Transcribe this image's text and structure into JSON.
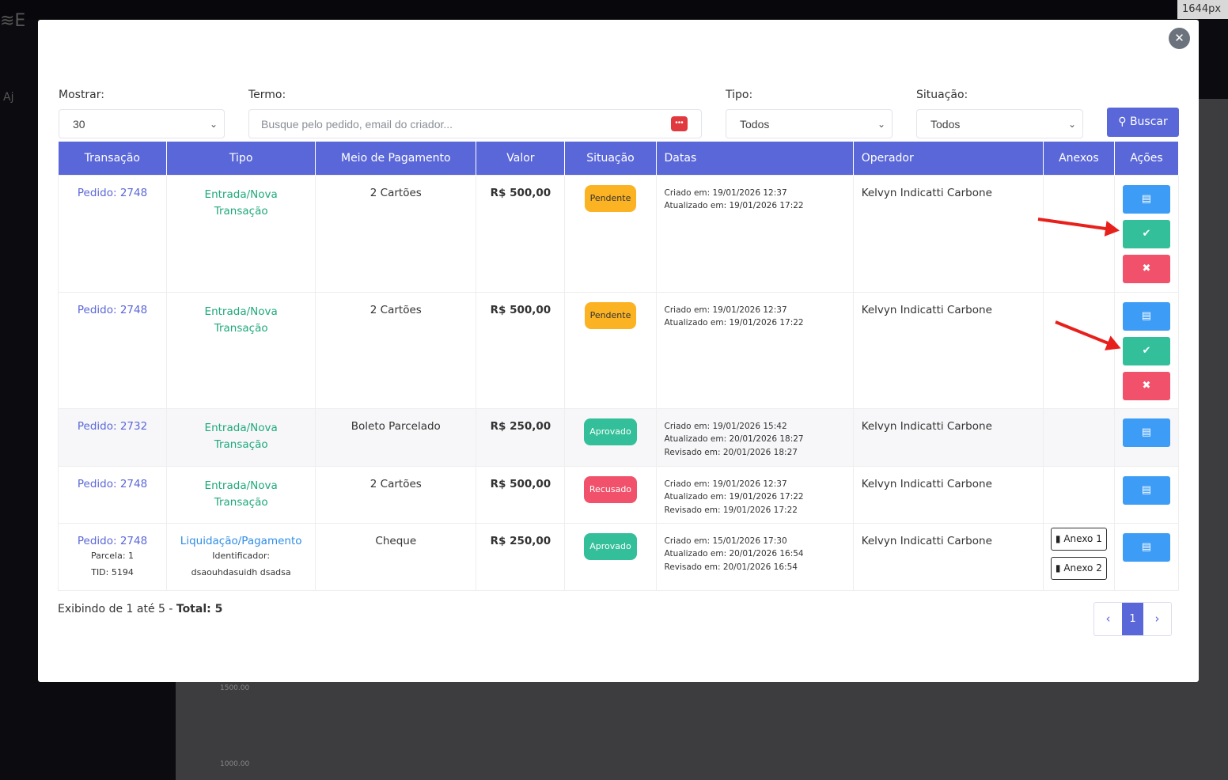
{
  "background": {
    "ruler": "1644px ×",
    "sidebar_help": "Aj",
    "chart_ticks": [
      "1500.00",
      "1000.00"
    ]
  },
  "filters": {
    "mostrar_label": "Mostrar:",
    "mostrar_value": "30",
    "termo_label": "Termo:",
    "termo_placeholder": "Busque pelo pedido, email do criador...",
    "tipo_label": "Tipo:",
    "tipo_value": "Todos",
    "situacao_label": "Situação:",
    "situacao_value": "Todos",
    "buscar": "Buscar"
  },
  "columns": [
    "Transação",
    "Tipo",
    "Meio de Pagamento",
    "Valor",
    "Situação",
    "Datas",
    "Operador",
    "Anexos",
    "Ações"
  ],
  "rows": [
    {
      "transacao": "Pedido: 2748",
      "tipo": "Entrada/Nova Transação",
      "meio": "2 Cartões",
      "valor": "R$ 500,00",
      "situacao": "Pendente",
      "datas": [
        "Criado em: 19/01/2026 12:37",
        "Atualizado em: 19/01/2026 17:22"
      ],
      "operador": "Kelvyn Indicatti Carbone"
    },
    {
      "transacao": "Pedido: 2748",
      "tipo": "Entrada/Nova Transação",
      "meio": "2 Cartões",
      "valor": "R$ 500,00",
      "situacao": "Pendente",
      "datas": [
        "Criado em: 19/01/2026 12:37",
        "Atualizado em: 19/01/2026 17:22"
      ],
      "operador": "Kelvyn Indicatti Carbone"
    },
    {
      "transacao": "Pedido: 2732",
      "tipo": "Entrada/Nova Transação",
      "meio": "Boleto Parcelado",
      "valor": "R$ 250,00",
      "situacao": "Aprovado",
      "datas": [
        "Criado em: 19/01/2026 15:42",
        "Atualizado em: 20/01/2026 18:27",
        "Revisado em: 20/01/2026 18:27"
      ],
      "operador": "Kelvyn Indicatti Carbone"
    },
    {
      "transacao": "Pedido: 2748",
      "tipo": "Entrada/Nova Transação",
      "meio": "2 Cartões",
      "valor": "R$ 500,00",
      "situacao": "Recusado",
      "datas": [
        "Criado em: 19/01/2026 12:37",
        "Atualizado em: 19/01/2026 17:22",
        "Revisado em: 19/01/2026 17:22"
      ],
      "operador": "Kelvyn Indicatti Carbone"
    },
    {
      "transacao": "Pedido: 2748",
      "parcela": "Parcela: 1",
      "tid": "TID: 5194",
      "tipo": "Liquidação/Pagamento",
      "identificador_label": "Identificador:",
      "identificador": "dsaouhdasuidh dsadsa",
      "meio": "Cheque",
      "valor": "R$ 250,00",
      "situacao": "Aprovado",
      "datas": [
        "Criado em: 15/01/2026 17:30",
        "Atualizado em: 20/01/2026 16:54",
        "Revisado em: 20/01/2026 16:54"
      ],
      "operador": "Kelvyn Indicatti Carbone",
      "anexos": [
        "Anexo 1",
        "Anexo 2"
      ]
    }
  ],
  "footer": {
    "text": "Exibindo de 1 até 5 - ",
    "total": "Total: 5"
  },
  "pagination": {
    "current": "1"
  },
  "colors": {
    "primary": "#5a67d8",
    "success": "#34bf9b",
    "danger": "#f1516a",
    "warning": "#fbb324",
    "info": "#3d9cf5"
  }
}
